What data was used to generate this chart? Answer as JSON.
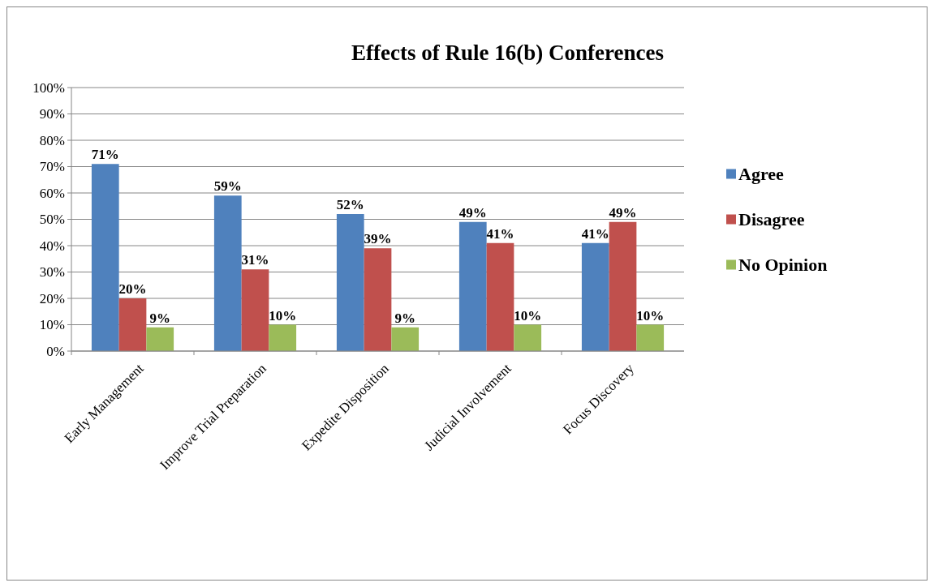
{
  "chart_data": {
    "type": "bar",
    "title": "Effects of  Rule 16(b) Conferences",
    "categories": [
      "Early Management",
      "Improve Trial Preparation",
      "Expedite Disposition",
      "Judicial Involvement",
      "Focus Discovery"
    ],
    "series": [
      {
        "name": "Agree",
        "color": "#4f81bd",
        "values": [
          71,
          59,
          52,
          49,
          41
        ],
        "value_labels": [
          "71%",
          "59%",
          "52%",
          "49%",
          "41%"
        ]
      },
      {
        "name": "Disagree",
        "color": "#c0504d",
        "values": [
          20,
          31,
          39,
          41,
          49
        ],
        "value_labels": [
          "20%",
          "31%",
          "39%",
          "41%",
          "49%"
        ]
      },
      {
        "name": "No Opinion",
        "color": "#9bbb59",
        "values": [
          9,
          10,
          9,
          10,
          10
        ],
        "value_labels": [
          "9%",
          "10%",
          "9%",
          "10%",
          "10%"
        ]
      }
    ],
    "ylim": [
      0,
      100
    ],
    "yticks": [
      {
        "value": 0,
        "label": "0%"
      },
      {
        "value": 10,
        "label": "10%"
      },
      {
        "value": 20,
        "label": "20%"
      },
      {
        "value": 30,
        "label": "30%"
      },
      {
        "value": 40,
        "label": "40%"
      },
      {
        "value": 50,
        "label": "50%"
      },
      {
        "value": 60,
        "label": "60%"
      },
      {
        "value": 70,
        "label": "70%"
      },
      {
        "value": 80,
        "label": "80%"
      },
      {
        "value": 90,
        "label": "90%"
      },
      {
        "value": 100,
        "label": "100%"
      }
    ],
    "grid": "y",
    "legend": "right"
  }
}
